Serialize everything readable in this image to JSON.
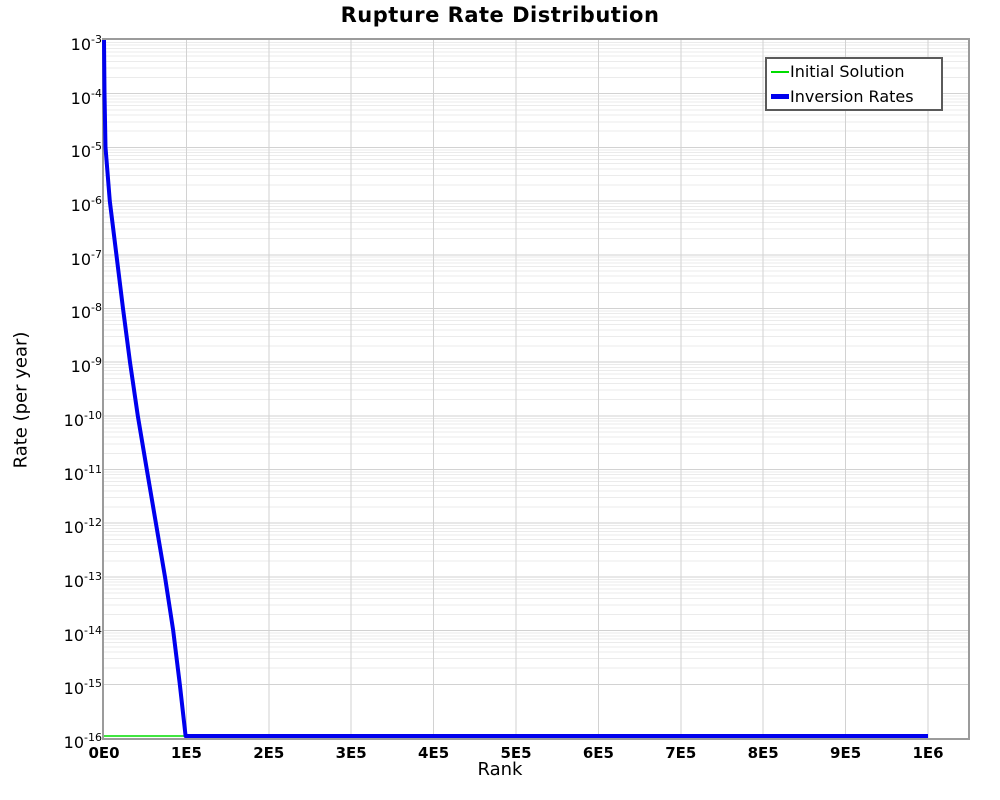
{
  "chart_data": {
    "type": "line",
    "title": "Rupture Rate Distribution",
    "xlabel": "Rank",
    "ylabel": "Rate (per year)",
    "x_axis": {
      "min": 0,
      "max": 1048000,
      "ticks": [
        {
          "value": 0,
          "label": "0E0"
        },
        {
          "value": 100000,
          "label": "1E5"
        },
        {
          "value": 200000,
          "label": "2E5"
        },
        {
          "value": 300000,
          "label": "3E5"
        },
        {
          "value": 400000,
          "label": "4E5"
        },
        {
          "value": 500000,
          "label": "5E5"
        },
        {
          "value": 600000,
          "label": "6E5"
        },
        {
          "value": 700000,
          "label": "7E5"
        },
        {
          "value": 800000,
          "label": "8E5"
        },
        {
          "value": 900000,
          "label": "9E5"
        },
        {
          "value": 1000000,
          "label": "1E6"
        }
      ]
    },
    "y_axis": {
      "scale": "log",
      "min": 1e-16,
      "max": 0.001,
      "tick_base": "10",
      "tick_exponents": [
        -3,
        -4,
        -5,
        -6,
        -7,
        -8,
        -9,
        -10,
        -11,
        -12,
        -13,
        -14,
        -15,
        -16
      ]
    },
    "grid": {
      "major_color": "#d2d2d2",
      "minor_color": "#ebebeb",
      "vertical_major_step": 100000,
      "horizontal_minor": "log-decades"
    },
    "legend": {
      "position": "top-right",
      "border_color": "#5a5a5a"
    },
    "series": [
      {
        "name": "Initial Solution",
        "color": "#00dd00",
        "line_width": 1.4,
        "points": [
          [
            0,
            1e-16
          ],
          [
            1000000,
            1e-16
          ]
        ]
      },
      {
        "name": "Inversion Rates",
        "color": "#0000ee",
        "line_width": 4,
        "points": [
          [
            0,
            0.001
          ],
          [
            600,
            0.0001
          ],
          [
            1800,
            1e-05
          ],
          [
            7000,
            1e-06
          ],
          [
            15000,
            1e-07
          ],
          [
            23000,
            1e-08
          ],
          [
            31500,
            1e-09
          ],
          [
            41000,
            1e-10
          ],
          [
            52000,
            1e-11
          ],
          [
            63000,
            1e-12
          ],
          [
            74000,
            1e-13
          ],
          [
            84000,
            1e-14
          ],
          [
            92000,
            1e-15
          ],
          [
            99000,
            1e-16
          ],
          [
            1000000,
            1e-16
          ]
        ]
      }
    ]
  }
}
